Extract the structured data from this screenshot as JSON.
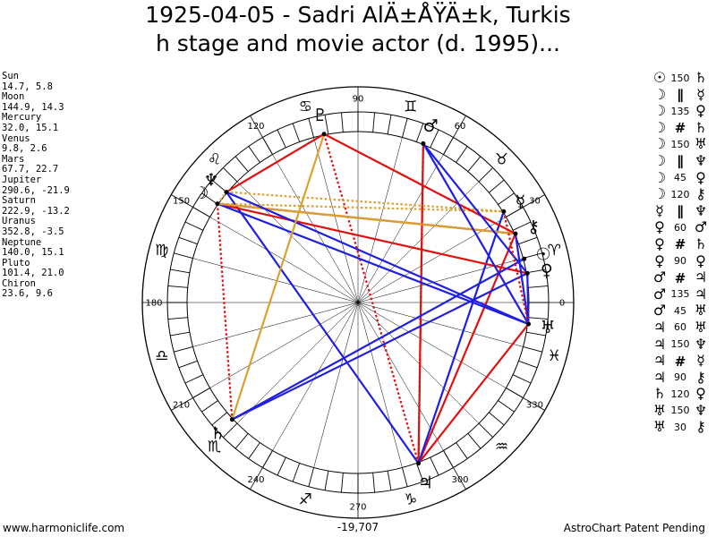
{
  "title_line1": "1925-04-05 - Sadri AlÄ±ÅŸÄ±k, Turkis",
  "title_line2": "h stage and movie actor (d. 1995)...",
  "planets": [
    {
      "name": "Sun",
      "coords": "14.7, 5.8"
    },
    {
      "name": "Moon",
      "coords": "144.9, 14.3"
    },
    {
      "name": "Mercury",
      "coords": "32.0, 15.1"
    },
    {
      "name": "Venus",
      "coords": "9.8, 2.6"
    },
    {
      "name": "Mars",
      "coords": "67.7, 22.7"
    },
    {
      "name": "Jupiter",
      "coords": "290.6, -21.9"
    },
    {
      "name": "Saturn",
      "coords": "222.9, -13.2"
    },
    {
      "name": "Uranus",
      "coords": "352.8, -3.5"
    },
    {
      "name": "Neptune",
      "coords": "140.0, 15.1"
    },
    {
      "name": "Pluto",
      "coords": "101.4, 21.0"
    },
    {
      "name": "Chiron",
      "coords": "23.6, 9.6"
    }
  ],
  "aspects": [
    {
      "p1": "☉",
      "orb": "150",
      "p2": "♄"
    },
    {
      "p1": "☽",
      "orb": "∥",
      "p2": "☿"
    },
    {
      "p1": "☽",
      "orb": "135",
      "p2": "♀"
    },
    {
      "p1": "☽",
      "orb": "#",
      "p2": "♄"
    },
    {
      "p1": "☽",
      "orb": "150",
      "p2": "♅"
    },
    {
      "p1": "☽",
      "orb": "∥",
      "p2": "♆"
    },
    {
      "p1": "☽",
      "orb": "45",
      "p2": "♀"
    },
    {
      "p1": "☽",
      "orb": "120",
      "p2": "⚷"
    },
    {
      "p1": "☿",
      "orb": "∥",
      "p2": "♆"
    },
    {
      "p1": "♀",
      "orb": "60",
      "p2": "♂"
    },
    {
      "p1": "♀",
      "orb": "#",
      "p2": "♄"
    },
    {
      "p1": "♀",
      "orb": "90",
      "p2": "♀"
    },
    {
      "p1": "♂",
      "orb": "#",
      "p2": "♃"
    },
    {
      "p1": "♂",
      "orb": "135",
      "p2": "♃"
    },
    {
      "p1": "♂",
      "orb": "45",
      "p2": "♅"
    },
    {
      "p1": "♃",
      "orb": "60",
      "p2": "♅"
    },
    {
      "p1": "♃",
      "orb": "150",
      "p2": "♆"
    },
    {
      "p1": "♃",
      "orb": "#",
      "p2": "☿"
    },
    {
      "p1": "♃",
      "orb": "90",
      "p2": "⚷"
    },
    {
      "p1": "♄",
      "orb": "120",
      "p2": "♀"
    },
    {
      "p1": "♅",
      "orb": "150",
      "p2": "♆"
    },
    {
      "p1": "♅",
      "orb": "30",
      "p2": "⚷"
    }
  ],
  "degree_labels": [
    "0",
    "30",
    "60",
    "90",
    "120",
    "150",
    "180",
    "210",
    "240",
    "270",
    "300",
    "330"
  ],
  "zodiac": [
    {
      "name": "aries",
      "glyph": "♈",
      "lon": 15
    },
    {
      "name": "taurus",
      "glyph": "♉",
      "lon": 45
    },
    {
      "name": "gemini",
      "glyph": "♊",
      "lon": 75
    },
    {
      "name": "cancer",
      "glyph": "♋",
      "lon": 105
    },
    {
      "name": "leo",
      "glyph": "♌",
      "lon": 135
    },
    {
      "name": "virgo",
      "glyph": "♍",
      "lon": 165
    },
    {
      "name": "libra",
      "glyph": "♎",
      "lon": 195
    },
    {
      "name": "scorpio",
      "glyph": "♏",
      "lon": 225
    },
    {
      "name": "sagittarius",
      "glyph": "♐",
      "lon": 255
    },
    {
      "name": "capricorn",
      "glyph": "♑",
      "lon": 285
    },
    {
      "name": "aquarius",
      "glyph": "♒",
      "lon": 315
    },
    {
      "name": "pisces",
      "glyph": "♓",
      "lon": 345
    }
  ],
  "bodies": [
    {
      "name": "sun",
      "glyph": "☉",
      "lon": 14.7
    },
    {
      "name": "moon",
      "glyph": "☽",
      "lon": 144.9
    },
    {
      "name": "mercury",
      "glyph": "☿",
      "lon": 32.0
    },
    {
      "name": "venus",
      "glyph": "♀",
      "lon": 9.8
    },
    {
      "name": "mars",
      "glyph": "♂",
      "lon": 67.7
    },
    {
      "name": "jupiter",
      "glyph": "♃",
      "lon": 290.6
    },
    {
      "name": "saturn",
      "glyph": "♄",
      "lon": 222.9
    },
    {
      "name": "uranus",
      "glyph": "♅",
      "lon": 352.8
    },
    {
      "name": "neptune",
      "glyph": "♆",
      "lon": 140.0
    },
    {
      "name": "pluto",
      "glyph": "♇",
      "lon": 101.4
    },
    {
      "name": "chiron",
      "glyph": "⚷",
      "lon": 23.6
    }
  ],
  "aspect_lines": [
    {
      "a": "jupiter",
      "b": "mars",
      "color": "#e01010",
      "dash": false
    },
    {
      "a": "jupiter",
      "b": "uranus",
      "color": "#e01010",
      "dash": false
    },
    {
      "a": "jupiter",
      "b": "chiron",
      "color": "#e01010",
      "dash": false
    },
    {
      "a": "jupiter",
      "b": "pluto",
      "color": "#e01010",
      "dash": true
    },
    {
      "a": "mars",
      "b": "jupiter",
      "color": "#e01010",
      "dash": true
    },
    {
      "a": "jupiter",
      "b": "neptune",
      "color": "#1f1fe0",
      "dash": false
    },
    {
      "a": "jupiter",
      "b": "mercury",
      "color": "#1f1fe0",
      "dash": false
    },
    {
      "a": "moon",
      "b": "saturn",
      "color": "#e01010",
      "dash": true
    },
    {
      "a": "moon",
      "b": "chiron",
      "color": "#e01010",
      "dash": false
    },
    {
      "a": "moon",
      "b": "venus",
      "color": "#e01010",
      "dash": false
    },
    {
      "a": "moon",
      "b": "mercury",
      "color": "#daa030",
      "dash": true
    },
    {
      "a": "moon",
      "b": "neptune",
      "color": "#daa030",
      "dash": true
    },
    {
      "a": "moon",
      "b": "uranus",
      "color": "#1f1fe0",
      "dash": false
    },
    {
      "a": "moon",
      "b": "chiron",
      "color": "#daa030",
      "dash": false
    },
    {
      "a": "neptune",
      "b": "mercury",
      "color": "#daa030",
      "dash": true
    },
    {
      "a": "neptune",
      "b": "uranus",
      "color": "#1f1fe0",
      "dash": false
    },
    {
      "a": "neptune",
      "b": "pluto",
      "color": "#e01010",
      "dash": false
    },
    {
      "a": "pluto",
      "b": "chiron",
      "color": "#e01010",
      "dash": false
    },
    {
      "a": "pluto",
      "b": "saturn",
      "color": "#daa030",
      "dash": false
    },
    {
      "a": "mars",
      "b": "venus",
      "color": "#1f1fe0",
      "dash": false
    },
    {
      "a": "mars",
      "b": "uranus",
      "color": "#1f1fe0",
      "dash": false
    },
    {
      "a": "saturn",
      "b": "sun",
      "color": "#1f1fe0",
      "dash": false
    },
    {
      "a": "saturn",
      "b": "venus",
      "color": "#1f1fe0",
      "dash": false
    },
    {
      "a": "uranus",
      "b": "chiron",
      "color": "#1f1fe0",
      "dash": false
    },
    {
      "a": "venus",
      "b": "uranus",
      "color": "#1f1fe0",
      "dash": false
    },
    {
      "a": "mercury",
      "b": "uranus",
      "color": "#e01010",
      "dash": true
    }
  ],
  "center_value": "-19,707",
  "footer_left": "www.harmoniclife.com",
  "footer_right": "AstroChart Patent Pending",
  "colors": {
    "red": "#e01010",
    "blue": "#1f1fe0",
    "gold": "#daa030"
  }
}
